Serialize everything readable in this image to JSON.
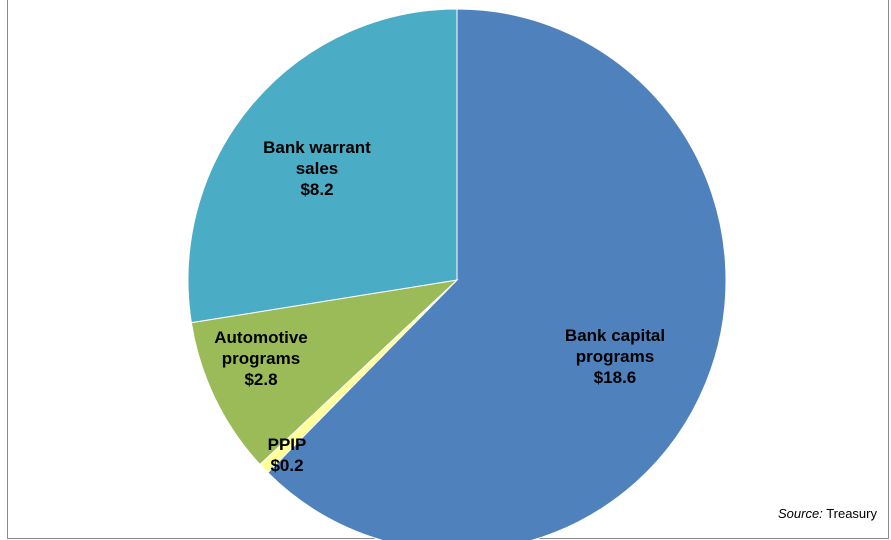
{
  "chart_data": {
    "type": "pie",
    "title": "",
    "slices": [
      {
        "label_lines": [
          "Bank capital",
          "programs"
        ],
        "value_label": "$18.6",
        "value": 18.6,
        "color": "#4f81bd"
      },
      {
        "label_lines": [
          "PPIP"
        ],
        "value_label": "$0.2",
        "value": 0.2,
        "color": "#ffff99"
      },
      {
        "label_lines": [
          "Automotive",
          "programs"
        ],
        "value_label": "$2.8",
        "value": 2.8,
        "color": "#9bbb59"
      },
      {
        "label_lines": [
          "Bank warrant",
          "sales"
        ],
        "value_label": "$8.2",
        "value": 8.2,
        "color": "#4bacc6"
      }
    ],
    "start_angle": "12 o'clock",
    "direction": "clockwise",
    "legend": "none"
  },
  "source": {
    "key": "Source:",
    "value": "Treasury"
  }
}
